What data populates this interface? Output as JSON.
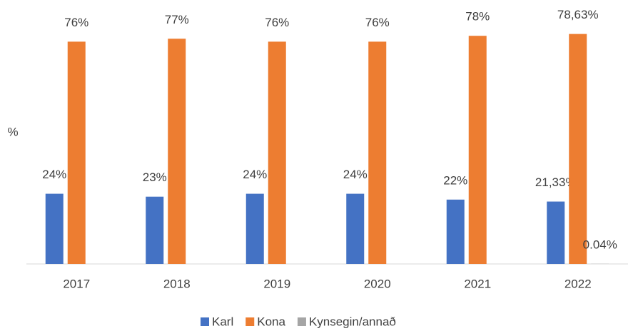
{
  "chart_data": {
    "type": "bar",
    "y_label": "%",
    "categories": [
      "2017",
      "2018",
      "2019",
      "2020",
      "2021",
      "2022"
    ],
    "series": [
      {
        "name": "Karl",
        "color": "#4472c4",
        "values": [
          24,
          23,
          24,
          24,
          22,
          21.33
        ],
        "value_labels": [
          "24%",
          "23%",
          "24%",
          "24%",
          "22%",
          "21,33%"
        ]
      },
      {
        "name": "Kona",
        "color": "#ed7d31",
        "values": [
          76,
          77,
          76,
          76,
          78,
          78.63
        ],
        "value_labels": [
          "76%",
          "77%",
          "76%",
          "76%",
          "78%",
          "78,63%"
        ]
      },
      {
        "name": "Kynsegin/annað",
        "color": "#a5a5a5",
        "values": [
          null,
          null,
          null,
          null,
          null,
          0.04
        ],
        "value_labels": [
          null,
          null,
          null,
          null,
          null,
          "0.04%"
        ]
      }
    ],
    "ylim": [
      0,
      90
    ],
    "legend": "bottom"
  }
}
